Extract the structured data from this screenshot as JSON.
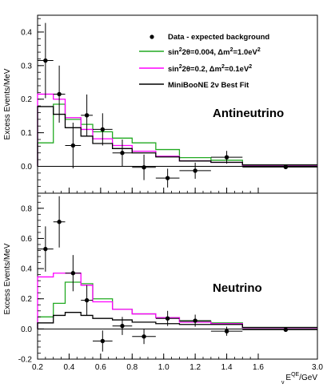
{
  "chart_data": [
    {
      "type": "line",
      "panel": "top",
      "label": "Antineutrino",
      "ylabel": "Excess Events/MeV",
      "xlim": [
        0.2,
        3.0
      ],
      "ylim": [
        -0.08,
        0.45
      ],
      "yticks": [
        {
          "value": 0.0,
          "label": "0.0"
        },
        {
          "value": 0.1,
          "label": "0.1"
        },
        {
          "value": 0.2,
          "label": "0.2"
        },
        {
          "value": 0.3,
          "label": "0.3"
        },
        {
          "value": 0.4,
          "label": "0.4"
        }
      ],
      "bin_edges": [
        0.2,
        0.3,
        0.375,
        0.475,
        0.55,
        0.675,
        0.8,
        0.95,
        1.1,
        1.3,
        1.5,
        3.0
      ],
      "data_points": {
        "x": [
          0.25,
          0.3375,
          0.425,
          0.5125,
          0.6125,
          0.7375,
          0.875,
          1.025,
          1.2,
          1.4,
          2.25
        ],
        "y": [
          0.315,
          0.215,
          0.062,
          0.152,
          0.11,
          0.04,
          -0.003,
          -0.035,
          -0.013,
          0.027,
          -0.002
        ],
        "yerr": [
          0.112,
          0.085,
          0.068,
          0.062,
          0.048,
          0.04,
          0.038,
          0.028,
          0.024,
          0.019,
          0.004
        ]
      },
      "series": [
        {
          "key": "green",
          "color": "#22aa22",
          "values": [
            0.07,
            0.185,
            0.14,
            0.125,
            0.103,
            0.084,
            0.07,
            0.05,
            0.026,
            0.018,
            0.004
          ]
        },
        {
          "key": "magenta",
          "color": "#ff00ff",
          "values": [
            0.215,
            0.2,
            0.145,
            0.11,
            0.082,
            0.062,
            0.045,
            0.03,
            0.016,
            0.012,
            0.003
          ]
        },
        {
          "key": "black",
          "color": "#000000",
          "values": [
            0.178,
            0.155,
            0.115,
            0.09,
            0.068,
            0.053,
            0.04,
            0.028,
            0.016,
            0.012,
            0.004
          ]
        }
      ]
    },
    {
      "type": "line",
      "panel": "bottom",
      "label": "Neutrino",
      "ylabel": "Excess Events/MeV",
      "xlabel": "E_ν^QE/GeV",
      "xlim": [
        0.2,
        3.0
      ],
      "ylim": [
        -0.2,
        0.9
      ],
      "yticks": [
        {
          "value": -0.2,
          "label": "-0.2"
        },
        {
          "value": 0.0,
          "label": "0.0"
        },
        {
          "value": 0.2,
          "label": "0.2"
        },
        {
          "value": 0.4,
          "label": "0.4"
        },
        {
          "value": 0.6,
          "label": "0.6"
        },
        {
          "value": 0.8,
          "label": "0.8"
        }
      ],
      "bin_edges": [
        0.2,
        0.3,
        0.375,
        0.475,
        0.55,
        0.675,
        0.8,
        0.95,
        1.1,
        1.3,
        1.5,
        3.0
      ],
      "data_points": {
        "x": [
          0.25,
          0.3375,
          0.425,
          0.5125,
          0.6125,
          0.7375,
          0.875,
          1.025,
          1.2,
          1.4,
          2.25
        ],
        "y": [
          0.53,
          0.71,
          0.37,
          0.19,
          -0.08,
          0.02,
          -0.05,
          0.07,
          0.055,
          -0.015,
          -0.005
        ],
        "yerr": [
          0.15,
          0.17,
          0.12,
          0.1,
          0.07,
          0.06,
          0.05,
          0.05,
          0.04,
          0.03,
          0.01
        ]
      },
      "series": [
        {
          "key": "green",
          "color": "#22aa22",
          "values": [
            0.08,
            0.17,
            0.31,
            0.3,
            0.2,
            0.13,
            0.1,
            0.075,
            0.05,
            0.04,
            0.01
          ]
        },
        {
          "key": "magenta",
          "color": "#ff00ff",
          "values": [
            0.345,
            0.37,
            0.37,
            0.29,
            0.18,
            0.13,
            0.1,
            0.075,
            0.045,
            0.035,
            0.008
          ]
        },
        {
          "key": "black",
          "color": "#000000",
          "values": [
            0.04,
            0.09,
            0.11,
            0.09,
            0.07,
            0.06,
            0.045,
            0.035,
            0.03,
            0.03,
            0.01
          ]
        }
      ]
    }
  ],
  "xticks": [
    {
      "value": 0.2,
      "label": "0.2"
    },
    {
      "value": 0.4,
      "label": "0.4"
    },
    {
      "value": 0.6,
      "label": "0.6"
    },
    {
      "value": 0.8,
      "label": "0.8"
    },
    {
      "value": 1.0,
      "label": "1.0"
    },
    {
      "value": 1.2,
      "label": "1.2"
    },
    {
      "value": 1.4,
      "label": "1.4"
    },
    {
      "value": 1.6,
      "label": "1.6"
    },
    {
      "value": 3.0,
      "label": "3.0"
    }
  ],
  "x_axis_break": {
    "linear_until": 1.6,
    "compressed_range": [
      1.6,
      3.0
    ]
  },
  "legend": {
    "placement": "top-right",
    "entries": [
      {
        "key": "data",
        "marker": "point",
        "color": "#000000",
        "label": "Data - expected background"
      },
      {
        "key": "green",
        "marker": "line",
        "color": "#22aa22",
        "text_a": "sin",
        "sup_a": "2",
        "text_b": "2θ=0.004, Δm",
        "sup_b": "2",
        "text_c": "=1.0eV",
        "sup_c": "2"
      },
      {
        "key": "magenta",
        "marker": "line",
        "color": "#ff00ff",
        "text_a": "sin",
        "sup_a": "2",
        "text_b": "2θ=0.2, Δm",
        "sup_b": "2",
        "text_c": "=0.1eV",
        "sup_c": "2"
      },
      {
        "key": "black",
        "marker": "line",
        "color": "#000000",
        "label": "MiniBooNE 2ν Best Fit"
      }
    ]
  },
  "labels": {
    "top_panel": "Antineutrino",
    "bottom_panel": "Neutrino",
    "ylabel": "Excess Events/MeV",
    "xlabel_main": "E",
    "xlabel_sub": "ν",
    "xlabel_sup": "QE",
    "xlabel_unit": "/GeV"
  }
}
